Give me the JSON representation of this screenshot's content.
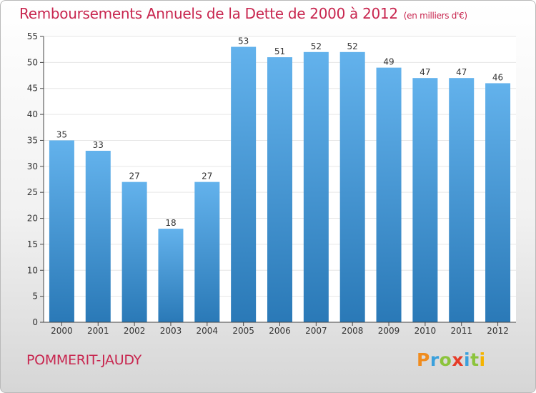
{
  "title": "Remboursements Annuels de la Dette de 2000 à 2012",
  "unit_note": "(en milliers d'€)",
  "city": "POMMERIT-JAUDY",
  "logo": {
    "letters": [
      "P",
      "r",
      "o",
      "x",
      "i",
      "t",
      "i"
    ],
    "colors": [
      "#f08c1e",
      "#3aa0dc",
      "#8cc43c",
      "#e63c28",
      "#3aa0dc",
      "#8cc43c",
      "#f5b400"
    ]
  },
  "colors": {
    "title": "#c8264f",
    "bar_top": "#63b2ec",
    "bar_bottom": "#2a79b7",
    "axis": "#444444",
    "grid": "#e6e6e6"
  },
  "chart_data": {
    "type": "bar",
    "title": "Remboursements Annuels de la Dette de 2000 à 2012",
    "xlabel": "",
    "ylabel": "",
    "categories": [
      "2000",
      "2001",
      "2002",
      "2003",
      "2004",
      "2005",
      "2006",
      "2007",
      "2008",
      "2009",
      "2010",
      "2011",
      "2012"
    ],
    "values": [
      35,
      33,
      27,
      18,
      27,
      53,
      51,
      52,
      52,
      49,
      47,
      47,
      46
    ],
    "ylim": [
      0,
      55
    ],
    "yticks": [
      0,
      5,
      10,
      15,
      20,
      25,
      30,
      35,
      40,
      45,
      50,
      55
    ],
    "grid": true
  }
}
